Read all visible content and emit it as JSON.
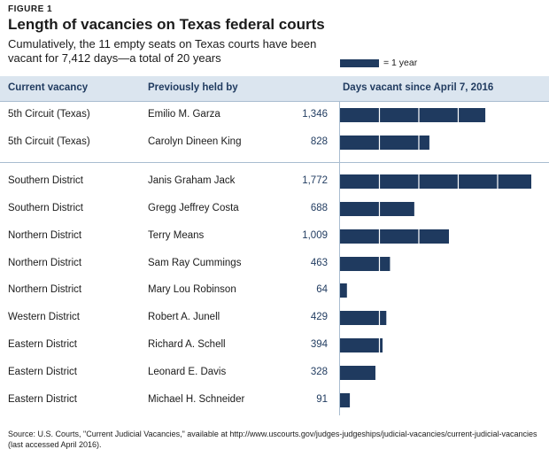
{
  "figure_label": "FIGURE 1",
  "title": "Length of vacancies on Texas federal courts",
  "subtitle": "Cumulatively, the 11 empty seats on Texas courts have been vacant for 7,412 days—a total of 20 years",
  "legend_label": "= 1 year",
  "headers": {
    "col1": "Current vacancy",
    "col2": "Previously held by",
    "col3": "Days vacant since April 7, 2016"
  },
  "source": "Source: U.S. Courts, \"Current Judicial Vacancies,\" available at http://www.uscourts.gov/judges-judgeships/judicial-vacancies/current-judicial-vacancies (last accessed April 2016).",
  "colors": {
    "bar": "#1f3a5f",
    "header_bg": "#dbe5ef",
    "rule": "#a9bdd0"
  },
  "chart_data": {
    "type": "bar",
    "orientation": "horizontal",
    "unit": "days",
    "segment_size": 365,
    "categories": [
      "5th Circuit (Texas)",
      "5th Circuit (Texas)",
      "Southern District",
      "Southern District",
      "Northern District",
      "Northern District",
      "Northern District",
      "Western District",
      "Eastern District",
      "Eastern District",
      "Eastern District"
    ],
    "previously_held_by": [
      "Emilio M. Garza",
      "Carolyn Dineen King",
      "Janis Graham Jack",
      "Gregg Jeffrey Costa",
      "Terry Means",
      "Sam Ray Cummings",
      "Mary Lou Robinson",
      "Robert A. Junell",
      "Richard A. Schell",
      "Leonard E. Davis",
      "Michael H. Schneider"
    ],
    "values": [
      1346,
      828,
      1772,
      688,
      1009,
      463,
      64,
      429,
      394,
      328,
      91
    ],
    "value_labels": [
      "1,346",
      "828",
      "1,772",
      "688",
      "1,009",
      "463",
      "64",
      "429",
      "394",
      "328",
      "91"
    ]
  }
}
